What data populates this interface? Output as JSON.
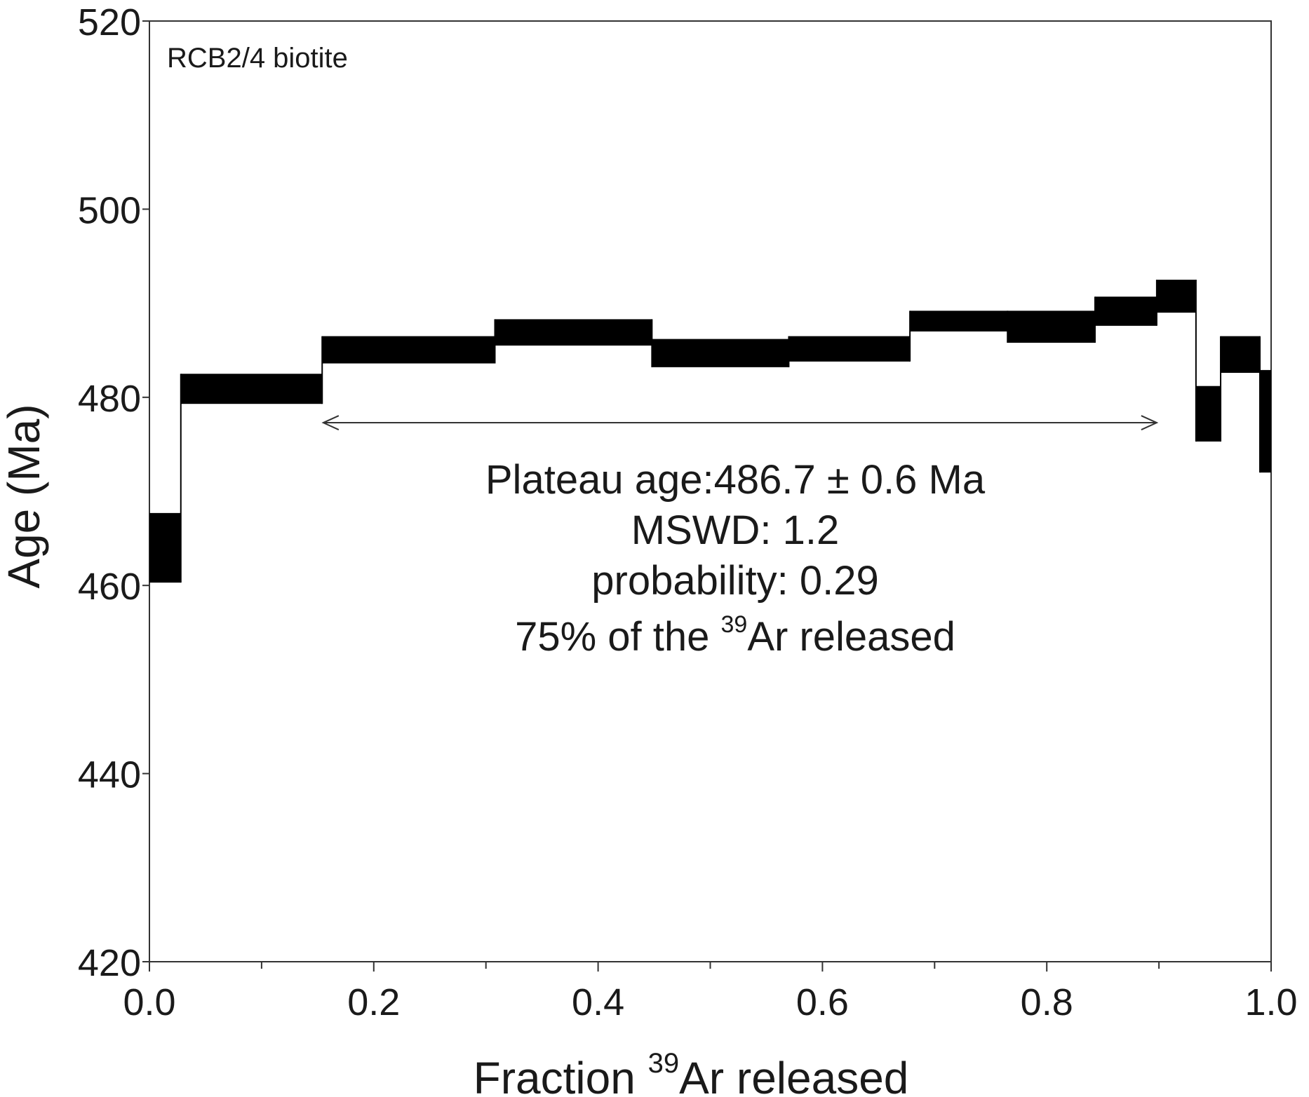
{
  "chart_data": {
    "type": "step",
    "sample_label": "RCB2/4 biotite",
    "xlabel": {
      "main": "Fraction ",
      "sup": "39",
      "rest": "Ar released"
    },
    "ylabel": "Age (Ma)",
    "xlim": [
      0.0,
      1.0
    ],
    "ylim": [
      420,
      520
    ],
    "xticks": [
      "0.0",
      "0.2",
      "0.4",
      "0.6",
      "0.8",
      "1.0"
    ],
    "xtick_values": [
      0.0,
      0.2,
      0.4,
      0.6,
      0.8,
      1.0
    ],
    "yticks": [
      "420",
      "440",
      "460",
      "480",
      "500",
      "520"
    ],
    "ytick_values": [
      420,
      440,
      460,
      480,
      500,
      520
    ],
    "steps": [
      {
        "x_start": 0.0,
        "x_end": 0.028,
        "age_low": 460.3,
        "age_high": 467.7
      },
      {
        "x_start": 0.028,
        "x_end": 0.154,
        "age_low": 479.3,
        "age_high": 482.5
      },
      {
        "x_start": 0.154,
        "x_end": 0.308,
        "age_low": 483.6,
        "age_high": 486.5
      },
      {
        "x_start": 0.308,
        "x_end": 0.448,
        "age_low": 485.5,
        "age_high": 488.3
      },
      {
        "x_start": 0.448,
        "x_end": 0.57,
        "age_low": 483.2,
        "age_high": 486.2
      },
      {
        "x_start": 0.57,
        "x_end": 0.678,
        "age_low": 483.8,
        "age_high": 486.5
      },
      {
        "x_start": 0.678,
        "x_end": 0.765,
        "age_low": 487.0,
        "age_high": 489.2
      },
      {
        "x_start": 0.765,
        "x_end": 0.843,
        "age_low": 485.8,
        "age_high": 489.2
      },
      {
        "x_start": 0.843,
        "x_end": 0.898,
        "age_low": 487.6,
        "age_high": 490.7
      },
      {
        "x_start": 0.898,
        "x_end": 0.933,
        "age_low": 489.0,
        "age_high": 492.5
      },
      {
        "x_start": 0.933,
        "x_end": 0.955,
        "age_low": 475.3,
        "age_high": 481.2
      },
      {
        "x_start": 0.955,
        "x_end": 0.99,
        "age_low": 482.6,
        "age_high": 486.5
      },
      {
        "x_start": 0.99,
        "x_end": 1.0,
        "age_low": 472.0,
        "age_high": 482.9
      }
    ],
    "plateau_range": {
      "x_start": 0.155,
      "x_end": 0.898,
      "age": 477.3
    },
    "annotation": {
      "line1": "Plateau age:486.7 ± 0.6 Ma",
      "line2": "MSWD: 1.2",
      "line3": "probability: 0.29",
      "line4_pre": "75% of the ",
      "line4_sup": "39",
      "line4_post": "Ar released"
    },
    "colors": {
      "bars": "#000000",
      "axes": "#333333",
      "text": "#1a1a1a"
    }
  }
}
